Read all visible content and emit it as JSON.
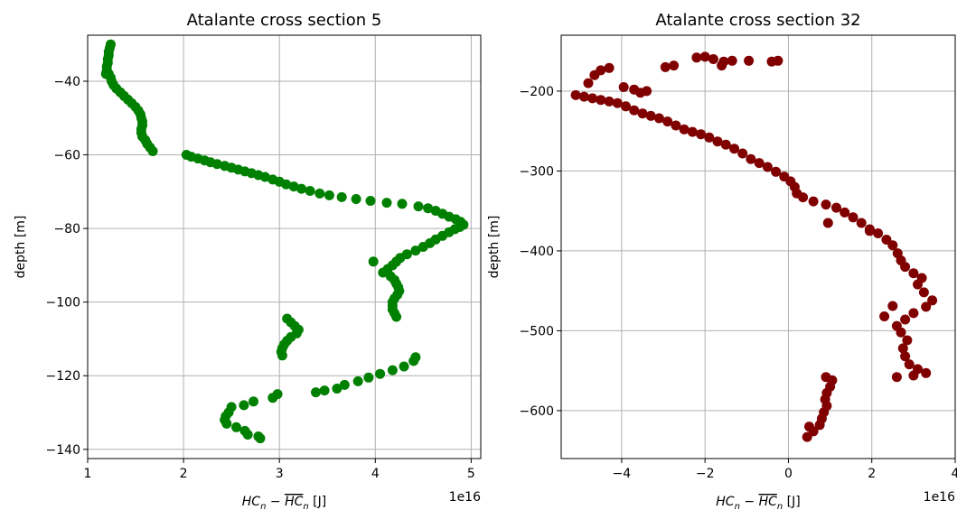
{
  "chart_data": [
    {
      "type": "scatter",
      "title": "Atalante cross section 5",
      "xlabel": "HC_n - overline(HC)_n [J]",
      "xlabel_parts": {
        "main": "HC",
        "sub": "n",
        "over": "HC",
        "unit": "[J]"
      },
      "ylabel": "depth [m]",
      "x_offset_text": "1e16",
      "xlim": [
        1.0,
        5.1
      ],
      "ylim": [
        -142.5,
        -27.5
      ],
      "xticks": [
        1,
        2,
        3,
        4,
        5
      ],
      "yticks": [
        -140,
        -120,
        -100,
        -80,
        -60,
        -40
      ],
      "xtick_labels": [
        "1",
        "2",
        "3",
        "4",
        "5"
      ],
      "ytick_labels": [
        "−140",
        "−120",
        "−100",
        "−80",
        "−60",
        "−40"
      ],
      "grid": true,
      "color": "#008000",
      "series": [
        {
          "points": [
            [
              1.24,
              -30
            ],
            [
              1.23,
              -31
            ],
            [
              1.22,
              -32
            ],
            [
              1.22,
              -33
            ],
            [
              1.21,
              -34
            ],
            [
              1.21,
              -35
            ],
            [
              1.2,
              -36
            ],
            [
              1.2,
              -37
            ],
            [
              1.19,
              -38
            ],
            [
              1.22,
              -38
            ],
            [
              1.24,
              -39
            ],
            [
              1.25,
              -40
            ],
            [
              1.27,
              -41
            ],
            [
              1.3,
              -42
            ],
            [
              1.34,
              -43
            ],
            [
              1.38,
              -44
            ],
            [
              1.42,
              -45
            ],
            [
              1.46,
              -46
            ],
            [
              1.5,
              -47
            ],
            [
              1.53,
              -48
            ],
            [
              1.55,
              -49
            ],
            [
              1.56,
              -50
            ],
            [
              1.57,
              -51
            ],
            [
              1.57,
              -52
            ],
            [
              1.56,
              -53
            ],
            [
              1.56,
              -54
            ],
            [
              1.57,
              -55
            ],
            [
              1.6,
              -56
            ],
            [
              1.62,
              -57
            ],
            [
              1.65,
              -58
            ],
            [
              1.68,
              -59
            ],
            [
              2.03,
              -60
            ],
            [
              2.08,
              -60.5
            ],
            [
              2.15,
              -61
            ],
            [
              2.22,
              -61.5
            ],
            [
              2.28,
              -62
            ],
            [
              2.35,
              -62.5
            ],
            [
              2.43,
              -63
            ],
            [
              2.5,
              -63.5
            ],
            [
              2.57,
              -64
            ],
            [
              2.64,
              -64.5
            ],
            [
              2.71,
              -65
            ],
            [
              2.78,
              -65.5
            ],
            [
              2.85,
              -66
            ],
            [
              2.93,
              -66.7
            ],
            [
              3.0,
              -67.3
            ],
            [
              3.07,
              -68
            ],
            [
              3.15,
              -68.6
            ],
            [
              3.23,
              -69.2
            ],
            [
              3.32,
              -69.8
            ],
            [
              3.42,
              -70.5
            ],
            [
              3.52,
              -71
            ],
            [
              3.65,
              -71.5
            ],
            [
              3.8,
              -72
            ],
            [
              3.95,
              -72.5
            ],
            [
              4.12,
              -73
            ],
            [
              4.28,
              -73.3
            ],
            [
              4.45,
              -74
            ],
            [
              4.55,
              -74.5
            ],
            [
              4.63,
              -75.2
            ],
            [
              4.7,
              -76
            ],
            [
              4.77,
              -76.8
            ],
            [
              4.84,
              -77.5
            ],
            [
              4.89,
              -78.2
            ],
            [
              4.92,
              -79
            ],
            [
              4.88,
              -79.6
            ],
            [
              4.83,
              -80.2
            ],
            [
              4.77,
              -81
            ],
            [
              4.7,
              -82
            ],
            [
              4.63,
              -83
            ],
            [
              4.57,
              -84
            ],
            [
              4.5,
              -85
            ],
            [
              4.42,
              -86
            ],
            [
              4.33,
              -87
            ],
            [
              4.26,
              -88
            ],
            [
              4.22,
              -89
            ],
            [
              4.18,
              -90
            ],
            [
              4.13,
              -91
            ],
            [
              4.08,
              -92
            ],
            [
              4.16,
              -93
            ],
            [
              4.2,
              -94
            ],
            [
              4.22,
              -95
            ],
            [
              4.24,
              -96
            ],
            [
              4.25,
              -97
            ],
            [
              4.23,
              -98
            ],
            [
              4.2,
              -99
            ],
            [
              4.18,
              -100
            ],
            [
              4.18,
              -101
            ],
            [
              4.18,
              -102
            ],
            [
              4.2,
              -103
            ],
            [
              4.22,
              -104
            ],
            [
              3.98,
              -89
            ],
            [
              3.08,
              -104.5
            ],
            [
              3.12,
              -105.5
            ],
            [
              3.16,
              -106.5
            ],
            [
              3.2,
              -107.5
            ],
            [
              3.18,
              -108.5
            ],
            [
              3.12,
              -109.5
            ],
            [
              3.08,
              -110.5
            ],
            [
              3.05,
              -111.5
            ],
            [
              3.03,
              -112.5
            ],
            [
              3.02,
              -113.5
            ],
            [
              3.03,
              -114.5
            ],
            [
              4.42,
              -115
            ],
            [
              4.4,
              -116
            ],
            [
              4.3,
              -117.5
            ],
            [
              4.18,
              -118.5
            ],
            [
              4.05,
              -119.5
            ],
            [
              3.93,
              -120.5
            ],
            [
              3.82,
              -121.5
            ],
            [
              3.68,
              -122.5
            ],
            [
              3.6,
              -123.5
            ],
            [
              3.47,
              -124
            ],
            [
              3.38,
              -124.5
            ],
            [
              2.98,
              -125
            ],
            [
              2.93,
              -126
            ],
            [
              2.73,
              -127
            ],
            [
              2.63,
              -128
            ],
            [
              2.5,
              -128.5
            ],
            [
              2.47,
              -130
            ],
            [
              2.44,
              -131
            ],
            [
              2.43,
              -132
            ],
            [
              2.45,
              -133
            ],
            [
              2.55,
              -134
            ],
            [
              2.64,
              -135
            ],
            [
              2.67,
              -136
            ],
            [
              2.78,
              -136.5
            ],
            [
              2.8,
              -137
            ]
          ]
        }
      ]
    },
    {
      "type": "scatter",
      "title": "Atalante cross section 32",
      "xlabel": "HC_n - overline(HC)_n [J]",
      "xlabel_parts": {
        "main": "HC",
        "sub": "n",
        "over": "HC",
        "unit": "[J]"
      },
      "ylabel": "depth [m]",
      "x_offset_text": "1e16",
      "xlim": [
        -5.45,
        4.0
      ],
      "ylim": [
        -660,
        -130
      ],
      "xticks": [
        -4,
        -2,
        0,
        2,
        4
      ],
      "yticks": [
        -600,
        -500,
        -400,
        -300,
        -200
      ],
      "xtick_labels": [
        "−4",
        "−2",
        "0",
        "2",
        "4"
      ],
      "ytick_labels": [
        "−600",
        "−500",
        "−400",
        "−300",
        "−200"
      ],
      "grid": true,
      "color": "#800000",
      "series": [
        {
          "points": [
            [
              -5.1,
              -205
            ],
            [
              -4.9,
              -207
            ],
            [
              -4.7,
              -209
            ],
            [
              -4.5,
              -211
            ],
            [
              -4.3,
              -213
            ],
            [
              -4.1,
              -215
            ],
            [
              -3.9,
              -219
            ],
            [
              -3.7,
              -224
            ],
            [
              -3.5,
              -228
            ],
            [
              -3.3,
              -231
            ],
            [
              -3.1,
              -234
            ],
            [
              -2.9,
              -238
            ],
            [
              -2.7,
              -243
            ],
            [
              -2.5,
              -248
            ],
            [
              -2.3,
              -251
            ],
            [
              -2.1,
              -254
            ],
            [
              -1.9,
              -258
            ],
            [
              -1.7,
              -263
            ],
            [
              -1.5,
              -267
            ],
            [
              -1.3,
              -272
            ],
            [
              -1.1,
              -278
            ],
            [
              -0.9,
              -285
            ],
            [
              -0.7,
              -290
            ],
            [
              -0.5,
              -295
            ],
            [
              -0.3,
              -301
            ],
            [
              -0.1,
              -307
            ],
            [
              0.05,
              -313
            ],
            [
              0.15,
              -320
            ],
            [
              0.2,
              -328
            ],
            [
              0.35,
              -333
            ],
            [
              0.6,
              -338
            ],
            [
              0.9,
              -342
            ],
            [
              1.15,
              -346
            ],
            [
              1.35,
              -352
            ],
            [
              1.55,
              -358
            ],
            [
              1.75,
              -365
            ],
            [
              1.95,
              -373
            ],
            [
              2.15,
              -378
            ],
            [
              2.35,
              -386
            ],
            [
              2.5,
              -393
            ],
            [
              2.62,
              -403
            ],
            [
              2.7,
              -412
            ],
            [
              2.8,
              -420
            ],
            [
              3.0,
              -428
            ],
            [
              3.2,
              -434
            ],
            [
              3.1,
              -442
            ],
            [
              3.25,
              -452
            ],
            [
              3.45,
              -462
            ],
            [
              3.3,
              -470
            ],
            [
              3.0,
              -478
            ],
            [
              2.8,
              -486
            ],
            [
              2.6,
              -494
            ],
            [
              2.7,
              -502
            ],
            [
              2.85,
              -512
            ],
            [
              2.75,
              -522
            ],
            [
              2.8,
              -532
            ],
            [
              2.9,
              -542
            ],
            [
              3.1,
              -548
            ],
            [
              3.3,
              -553
            ],
            [
              3.0,
              -556
            ],
            [
              2.6,
              -558
            ],
            [
              2.5,
              -469
            ],
            [
              2.3,
              -482
            ],
            [
              1.95,
              -375
            ],
            [
              0.95,
              -365
            ],
            [
              0.9,
              -558
            ],
            [
              1.05,
              -562
            ],
            [
              1.0,
              -570
            ],
            [
              0.92,
              -578
            ],
            [
              0.88,
              -586
            ],
            [
              0.92,
              -594
            ],
            [
              0.85,
              -602
            ],
            [
              0.8,
              -610
            ],
            [
              0.75,
              -618
            ],
            [
              0.6,
              -626
            ],
            [
              0.45,
              -633
            ],
            [
              0.5,
              -620
            ],
            [
              -4.8,
              -190
            ],
            [
              -4.65,
              -180
            ],
            [
              -4.5,
              -174
            ],
            [
              -4.3,
              -171
            ],
            [
              -3.95,
              -195
            ],
            [
              -3.7,
              -198
            ],
            [
              -3.55,
              -202
            ],
            [
              -3.4,
              -200
            ],
            [
              -2.95,
              -170
            ],
            [
              -2.75,
              -168
            ],
            [
              -2.2,
              -158
            ],
            [
              -2.0,
              -157
            ],
            [
              -1.8,
              -160
            ],
            [
              -1.55,
              -163
            ],
            [
              -1.6,
              -168
            ],
            [
              -1.35,
              -162
            ],
            [
              -0.95,
              -162
            ],
            [
              -0.4,
              -163
            ],
            [
              -0.25,
              -162
            ]
          ]
        }
      ]
    }
  ]
}
